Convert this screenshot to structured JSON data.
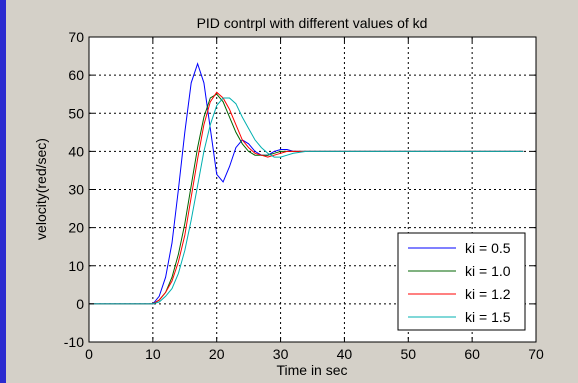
{
  "chart_data": {
    "type": "line",
    "title": "PID contrpl with different values of kd",
    "xlabel": "Time in sec",
    "ylabel": "velocity(red/sec)",
    "xlim": [
      0,
      70
    ],
    "ylim": [
      -10,
      70
    ],
    "xticks": [
      0,
      10,
      20,
      30,
      40,
      50,
      60,
      70
    ],
    "yticks": [
      -10,
      0,
      10,
      20,
      30,
      40,
      50,
      60,
      70
    ],
    "grid": true,
    "legend_position": "bottom-right",
    "series": [
      {
        "name": "ki = 0.5",
        "color": "#0000ff",
        "x": [
          0,
          10,
          11,
          12,
          13,
          14,
          15,
          16,
          17,
          18,
          19,
          20,
          21,
          22,
          23,
          24,
          25,
          26,
          27,
          28,
          29,
          30,
          31,
          32,
          33,
          35,
          38,
          40,
          50,
          60,
          68
        ],
        "y": [
          0,
          0,
          2,
          7,
          16,
          30,
          45,
          58,
          63,
          58,
          46,
          34,
          32,
          36,
          41,
          43,
          42,
          40,
          39,
          39,
          40,
          40.5,
          40.5,
          40,
          40,
          40,
          40,
          40,
          40,
          40,
          40
        ]
      },
      {
        "name": "ki = 1.0",
        "color": "#006400",
        "x": [
          0,
          10,
          11,
          12,
          13,
          14,
          15,
          16,
          17,
          18,
          19,
          20,
          21,
          22,
          23,
          24,
          25,
          26,
          27,
          28,
          29,
          30,
          31,
          32,
          34,
          36,
          38,
          40,
          50,
          60,
          68
        ],
        "y": [
          0,
          0,
          1,
          3,
          7,
          13,
          21,
          31,
          41,
          49,
          54,
          55,
          53,
          49,
          45,
          42,
          40,
          39,
          39,
          39,
          39.5,
          40,
          40,
          40,
          40,
          40,
          40,
          40,
          40,
          40,
          40
        ]
      },
      {
        "name": "ki = 1.2",
        "color": "#ff0000",
        "x": [
          0,
          10,
          11,
          12,
          13,
          14,
          15,
          16,
          17,
          18,
          19,
          20,
          21,
          22,
          23,
          24,
          25,
          26,
          27,
          28,
          29,
          30,
          31,
          32,
          34,
          36,
          38,
          40,
          50,
          60,
          68
        ],
        "y": [
          0,
          0,
          1,
          3,
          6,
          11,
          18,
          28,
          38,
          47,
          53,
          55.5,
          54,
          51,
          47,
          43,
          41,
          39.5,
          39,
          38.5,
          39,
          39.5,
          40,
          40,
          40,
          40,
          40,
          40,
          40,
          40,
          40
        ]
      },
      {
        "name": "ki = 1.5",
        "color": "#00b0b0",
        "x": [
          0,
          10,
          11,
          12,
          13,
          14,
          15,
          16,
          17,
          18,
          19,
          20,
          21,
          22,
          23,
          24,
          25,
          26,
          27,
          28,
          29,
          30,
          31,
          32,
          34,
          36,
          38,
          40,
          50,
          60,
          68
        ],
        "y": [
          0,
          0,
          0.5,
          2,
          4,
          8,
          14,
          22,
          31,
          40,
          47,
          52,
          54,
          54,
          52.5,
          49,
          46,
          43,
          41,
          39.5,
          38.5,
          38.5,
          39,
          39.5,
          40,
          40,
          40,
          40,
          40,
          40,
          40
        ]
      }
    ]
  }
}
